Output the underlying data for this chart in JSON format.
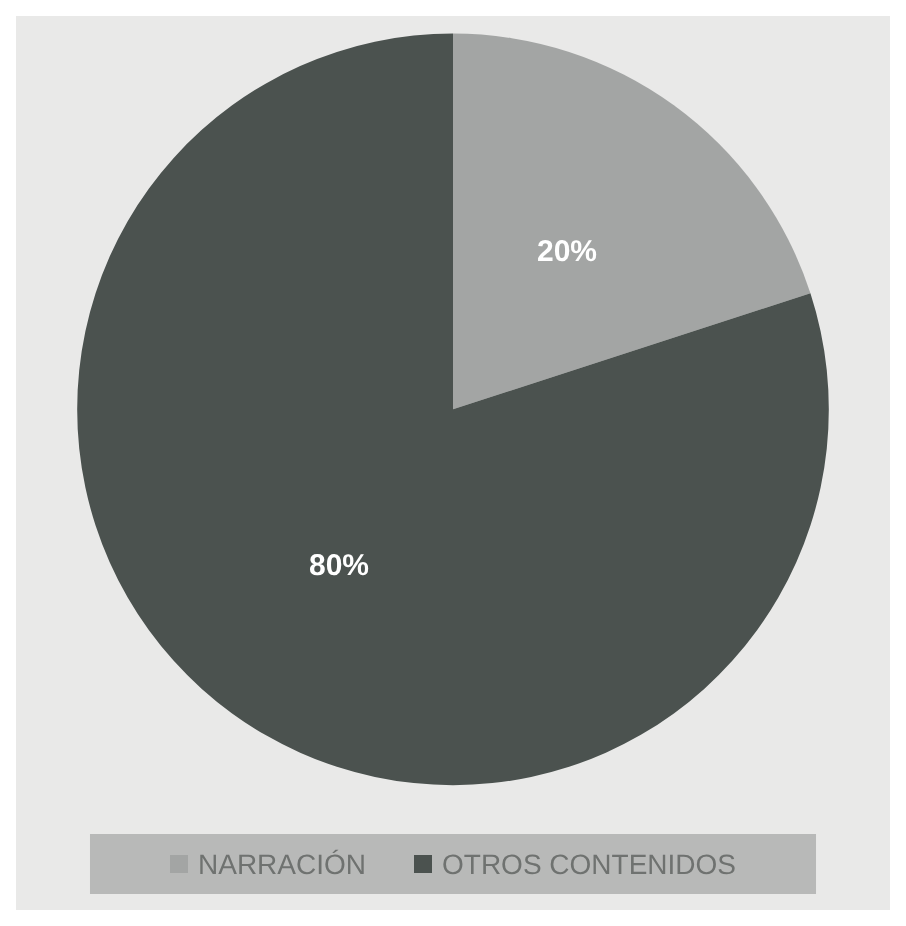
{
  "chart_data": {
    "type": "pie",
    "categories": [
      "NARRACIÓN",
      "OTROS CONTENIDOS"
    ],
    "values": [
      20,
      80
    ],
    "colors": [
      "#a3a5a4",
      "#4b524f"
    ],
    "value_labels": [
      "20%",
      "80%"
    ],
    "legend": "bottom"
  }
}
